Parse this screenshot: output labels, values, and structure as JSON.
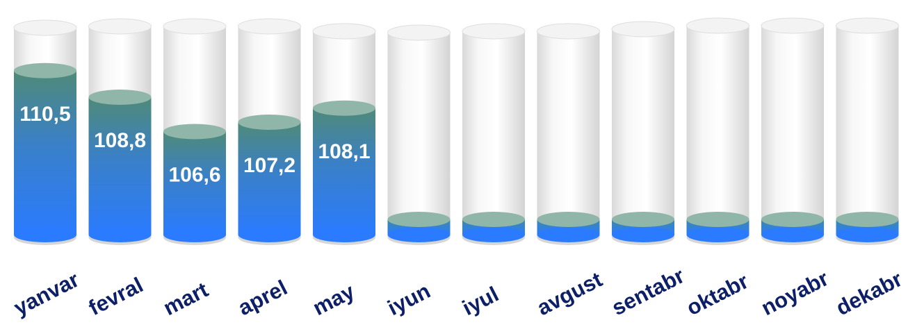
{
  "colors": {
    "liquid_top": "#4f8a78",
    "liquid_bottom": "#2a7bff",
    "cap": "#8fb6a8",
    "glass": "#e9e9e9",
    "label_text": "#ffffff",
    "category_text": "#0d1f66"
  },
  "chart_data": {
    "type": "bar",
    "style": "3d-cylinder",
    "categories": [
      "yanvar",
      "fevral",
      "mart",
      "aprel",
      "may",
      "iyun",
      "iyul",
      "avgust",
      "sentabr",
      "oktabr",
      "noyabr",
      "dekabr"
    ],
    "values": [
      110.5,
      108.8,
      106.6,
      107.2,
      108.1,
      null,
      null,
      null,
      null,
      null,
      null,
      null
    ],
    "value_labels": [
      "110,5",
      "108,8",
      "106,6",
      "107,2",
      "108,1",
      "",
      "",
      "",
      "",
      "",
      "",
      ""
    ],
    "title": "",
    "xlabel": "",
    "ylabel": "",
    "legend": "none",
    "grid": false
  }
}
